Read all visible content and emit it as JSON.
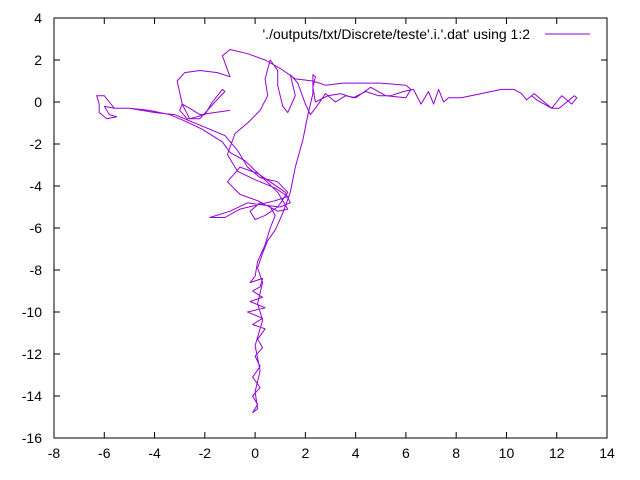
{
  "chart_data": {
    "type": "line",
    "title": "",
    "xlabel": "",
    "ylabel": "",
    "xlim": [
      -8,
      14
    ],
    "ylim": [
      -16,
      4
    ],
    "xticks": [
      -8,
      -6,
      -4,
      -2,
      0,
      2,
      4,
      6,
      8,
      10,
      12,
      14
    ],
    "yticks": [
      -16,
      -14,
      -12,
      -10,
      -8,
      -6,
      -4,
      -2,
      0,
      2,
      4
    ],
    "grid": false,
    "legend_position": "top-right",
    "series": [
      {
        "name": "'./outputs/txt/Discrete/teste'.i.'.dat' using 1:2",
        "color": "#9400d3",
        "points": [
          [
            -1.0,
            -0.4
          ],
          [
            -1.6,
            -0.5
          ],
          [
            -2.2,
            -0.6
          ],
          [
            -2.6,
            -0.3
          ],
          [
            -2.9,
            -0.1
          ],
          [
            -3.0,
            -0.4
          ],
          [
            -2.7,
            -0.8
          ],
          [
            -2.2,
            -0.8
          ],
          [
            -1.6,
            0.0
          ],
          [
            -1.2,
            0.5
          ],
          [
            -1.3,
            0.6
          ],
          [
            -1.7,
            0.0
          ],
          [
            -2.0,
            -0.6
          ],
          [
            -2.6,
            -0.8
          ],
          [
            -2.9,
            -0.1
          ],
          [
            -3.1,
            1.0
          ],
          [
            -2.8,
            1.4
          ],
          [
            -2.2,
            1.5
          ],
          [
            -1.5,
            1.4
          ],
          [
            -1.0,
            1.2
          ],
          [
            -1.3,
            2.2
          ],
          [
            -1.0,
            2.5
          ],
          [
            -0.3,
            2.3
          ],
          [
            0.4,
            2.0
          ],
          [
            1.0,
            1.6
          ],
          [
            1.6,
            1.1
          ],
          [
            2.3,
            1.0
          ],
          [
            2.8,
            0.8
          ],
          [
            3.5,
            0.9
          ],
          [
            5.0,
            0.9
          ],
          [
            6.0,
            0.8
          ],
          [
            6.2,
            0.6
          ],
          [
            6.0,
            0.2
          ],
          [
            5.2,
            0.3
          ],
          [
            4.6,
            0.7
          ],
          [
            4.0,
            0.2
          ],
          [
            3.6,
            0.3
          ],
          [
            3.2,
            0.0
          ],
          [
            2.8,
            0.4
          ],
          [
            2.4,
            -0.3
          ],
          [
            2.2,
            -0.6
          ],
          [
            2.0,
            -0.1
          ],
          [
            1.7,
            0.9
          ],
          [
            1.4,
            1.3
          ],
          [
            1.6,
            0.3
          ],
          [
            1.3,
            -0.5
          ],
          [
            1.1,
            -0.2
          ],
          [
            0.9,
            0.8
          ],
          [
            0.9,
            1.5
          ],
          [
            0.6,
            2.0
          ],
          [
            0.4,
            1.1
          ],
          [
            0.5,
            0.3
          ],
          [
            0.2,
            -0.4
          ],
          [
            -0.3,
            -1.0
          ],
          [
            -0.8,
            -1.5
          ],
          [
            -1.1,
            -2.5
          ],
          [
            -0.7,
            -3.3
          ],
          [
            0.0,
            -3.7
          ],
          [
            0.8,
            -4.1
          ],
          [
            1.3,
            -4.5
          ],
          [
            0.8,
            -4.7
          ],
          [
            0.1,
            -4.9
          ],
          [
            -0.6,
            -5.1
          ],
          [
            -1.2,
            -5.5
          ],
          [
            -1.8,
            -5.5
          ],
          [
            -1.0,
            -5.2
          ],
          [
            -0.3,
            -4.8
          ],
          [
            0.3,
            -4.9
          ],
          [
            1.0,
            -5.0
          ],
          [
            1.4,
            -4.8
          ],
          [
            1.2,
            -4.3
          ],
          [
            0.6,
            -3.8
          ],
          [
            0.1,
            -3.4
          ],
          [
            -0.6,
            -3.1
          ],
          [
            -1.1,
            -3.8
          ],
          [
            -0.6,
            -4.4
          ],
          [
            0.1,
            -4.7
          ],
          [
            0.9,
            -5.2
          ],
          [
            1.3,
            -5.1
          ],
          [
            0.9,
            -4.3
          ],
          [
            0.3,
            -3.6
          ],
          [
            -0.4,
            -2.8
          ],
          [
            -1.0,
            -2.4
          ],
          [
            -1.3,
            -1.9
          ],
          [
            -2.1,
            -1.3
          ],
          [
            -2.8,
            -0.9
          ],
          [
            -3.4,
            -0.6
          ],
          [
            -4.2,
            -0.4
          ],
          [
            -5.0,
            -0.3
          ],
          [
            -5.6,
            -0.3
          ],
          [
            -6.0,
            -0.2
          ],
          [
            -5.8,
            -0.6
          ],
          [
            -5.5,
            -0.7
          ],
          [
            -5.9,
            -0.8
          ],
          [
            -6.2,
            -0.5
          ],
          [
            -6.2,
            -0.1
          ],
          [
            -6.3,
            0.3
          ],
          [
            -6.0,
            0.3
          ],
          [
            -5.8,
            0.0
          ],
          [
            -5.6,
            -0.3
          ],
          [
            -5.0,
            -0.3
          ],
          [
            -4.0,
            -0.5
          ],
          [
            -3.2,
            -0.6
          ],
          [
            -2.6,
            -0.9
          ],
          [
            -2.0,
            -1.2
          ],
          [
            -1.2,
            -1.6
          ],
          [
            -0.7,
            -2.3
          ],
          [
            -0.3,
            -3.1
          ],
          [
            0.2,
            -3.6
          ],
          [
            0.9,
            -3.8
          ],
          [
            1.3,
            -4.3
          ],
          [
            0.9,
            -5.0
          ],
          [
            0.4,
            -5.4
          ],
          [
            0.0,
            -5.6
          ],
          [
            -0.2,
            -5.2
          ],
          [
            0.2,
            -4.8
          ],
          [
            0.6,
            -5.0
          ],
          [
            0.8,
            -5.4
          ],
          [
            0.6,
            -6.0
          ],
          [
            0.4,
            -6.8
          ],
          [
            0.1,
            -7.6
          ],
          [
            0.0,
            -8.3
          ],
          [
            -0.2,
            -8.6
          ],
          [
            0.3,
            -8.4
          ],
          [
            0.2,
            -8.8
          ],
          [
            -0.1,
            -9.0
          ],
          [
            0.3,
            -9.3
          ],
          [
            -0.2,
            -9.5
          ],
          [
            0.4,
            -9.8
          ],
          [
            -0.3,
            -10.0
          ],
          [
            0.3,
            -10.3
          ],
          [
            -0.1,
            -10.6
          ],
          [
            0.4,
            -10.8
          ],
          [
            0.1,
            -11.3
          ],
          [
            0.3,
            -11.7
          ],
          [
            0.0,
            -12.1
          ],
          [
            0.2,
            -12.6
          ],
          [
            -0.1,
            -13.1
          ],
          [
            0.2,
            -13.6
          ],
          [
            -0.1,
            -14.0
          ],
          [
            0.1,
            -14.4
          ],
          [
            -0.1,
            -14.8
          ],
          [
            0.1,
            -14.6
          ],
          [
            0.0,
            -13.8
          ],
          [
            0.2,
            -12.8
          ],
          [
            0.0,
            -11.6
          ],
          [
            0.3,
            -10.4
          ],
          [
            0.1,
            -9.6
          ],
          [
            0.3,
            -8.6
          ],
          [
            0.1,
            -7.9
          ],
          [
            0.3,
            -7.2
          ],
          [
            0.5,
            -6.6
          ],
          [
            0.8,
            -6.1
          ],
          [
            1.1,
            -5.3
          ],
          [
            1.4,
            -4.3
          ],
          [
            1.6,
            -3.1
          ],
          [
            1.9,
            -1.8
          ],
          [
            2.1,
            -0.6
          ],
          [
            2.3,
            0.4
          ],
          [
            2.3,
            1.3
          ],
          [
            2.4,
            1.2
          ],
          [
            2.3,
            0.7
          ],
          [
            2.4,
            0.0
          ],
          [
            2.9,
            0.3
          ],
          [
            3.4,
            0.4
          ],
          [
            3.9,
            0.2
          ],
          [
            4.4,
            0.5
          ],
          [
            4.9,
            0.3
          ],
          [
            5.4,
            0.3
          ],
          [
            5.9,
            0.5
          ],
          [
            6.3,
            0.6
          ],
          [
            6.6,
            -0.1
          ],
          [
            6.9,
            0.5
          ],
          [
            7.1,
            -0.1
          ],
          [
            7.3,
            0.6
          ],
          [
            7.5,
            0.0
          ],
          [
            7.7,
            0.2
          ],
          [
            8.2,
            0.2
          ],
          [
            9.0,
            0.4
          ],
          [
            9.8,
            0.6
          ],
          [
            10.3,
            0.6
          ],
          [
            10.6,
            0.4
          ],
          [
            10.8,
            0.1
          ],
          [
            11.1,
            0.4
          ],
          [
            11.5,
            0.0
          ],
          [
            11.8,
            -0.3
          ],
          [
            12.0,
            0.0
          ],
          [
            12.2,
            0.3
          ],
          [
            12.4,
            0.1
          ],
          [
            12.6,
            -0.1
          ],
          [
            12.8,
            0.2
          ],
          [
            12.7,
            0.3
          ],
          [
            12.4,
            0.0
          ],
          [
            12.1,
            -0.3
          ],
          [
            11.8,
            -0.3
          ],
          [
            11.5,
            -0.1
          ],
          [
            11.2,
            0.1
          ],
          [
            11.0,
            0.3
          ]
        ]
      }
    ]
  }
}
